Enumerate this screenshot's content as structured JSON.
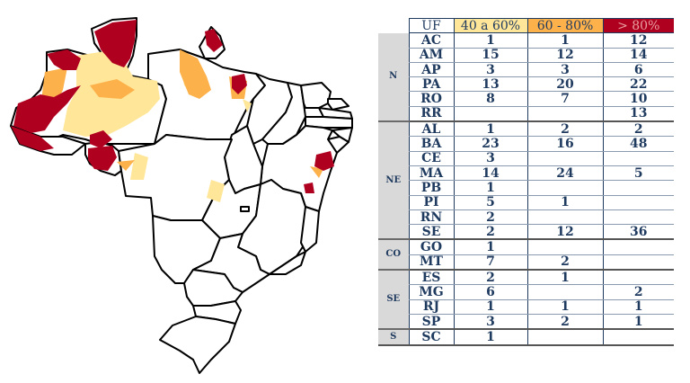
{
  "legend_colors": {
    "c40_60": "#ffe699",
    "c60_80": "#fdb14a",
    "c80_plus": "#b00020"
  },
  "table": {
    "headers": {
      "uf": "UF",
      "c1": "40 a 60%",
      "c2": "60 - 80%",
      "c3": "> 80%"
    },
    "regions": [
      {
        "label": "N",
        "rows": [
          {
            "uf": "AC",
            "c1": "1",
            "c2": "1",
            "c3": "12"
          },
          {
            "uf": "AM",
            "c1": "15",
            "c2": "12",
            "c3": "14"
          },
          {
            "uf": "AP",
            "c1": "3",
            "c2": "3",
            "c3": "6"
          },
          {
            "uf": "PA",
            "c1": "13",
            "c2": "20",
            "c3": "22"
          },
          {
            "uf": "RO",
            "c1": "8",
            "c2": "7",
            "c3": "10"
          },
          {
            "uf": "RR",
            "c1": "",
            "c2": "",
            "c3": "13"
          }
        ]
      },
      {
        "label": "NE",
        "rows": [
          {
            "uf": "AL",
            "c1": "1",
            "c2": "2",
            "c3": "2"
          },
          {
            "uf": "BA",
            "c1": "23",
            "c2": "16",
            "c3": "48"
          },
          {
            "uf": "CE",
            "c1": "3",
            "c2": "",
            "c3": ""
          },
          {
            "uf": "MA",
            "c1": "14",
            "c2": "24",
            "c3": "5"
          },
          {
            "uf": "PB",
            "c1": "1",
            "c2": "",
            "c3": ""
          },
          {
            "uf": "PI",
            "c1": "5",
            "c2": "1",
            "c3": ""
          },
          {
            "uf": "RN",
            "c1": "2",
            "c2": "",
            "c3": ""
          },
          {
            "uf": "SE",
            "c1": "2",
            "c2": "12",
            "c3": "36"
          }
        ]
      },
      {
        "label": "CO",
        "rows": [
          {
            "uf": "GO",
            "c1": "1",
            "c2": "",
            "c3": ""
          },
          {
            "uf": "MT",
            "c1": "7",
            "c2": "2",
            "c3": ""
          }
        ]
      },
      {
        "label": "SE",
        "rows": [
          {
            "uf": "ES",
            "c1": "2",
            "c2": "1",
            "c3": ""
          },
          {
            "uf": "MG",
            "c1": "6",
            "c2": "",
            "c3": "2"
          },
          {
            "uf": "RJ",
            "c1": "1",
            "c2": "1",
            "c3": "1"
          },
          {
            "uf": "SP",
            "c1": "3",
            "c2": "2",
            "c3": "1"
          }
        ]
      },
      {
        "label": "S",
        "rows": [
          {
            "uf": "SC",
            "c1": "1",
            "c2": "",
            "c3": ""
          }
        ]
      }
    ]
  }
}
